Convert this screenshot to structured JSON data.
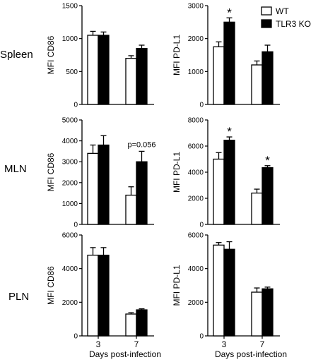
{
  "legend": {
    "entries": [
      {
        "label": "WT",
        "fill": "#ffffff"
      },
      {
        "label": "TLR3 KO",
        "fill": "#000000"
      }
    ],
    "placement": "top-right"
  },
  "rows": [
    {
      "label": "Spleen"
    },
    {
      "label": "MLN"
    },
    {
      "label": "PLN"
    }
  ],
  "x_axis_label": "Days post-infection",
  "chart_data": [
    {
      "type": "bar",
      "row": "Spleen",
      "ylabel": "MFI CD86",
      "categories": [
        "3",
        "7"
      ],
      "ylim": [
        0,
        1500
      ],
      "yticks": [
        0,
        500,
        1000,
        1500
      ],
      "show_xticks": false,
      "series": [
        {
          "name": "WT",
          "values": [
            1050,
            700
          ],
          "errors": [
            60,
            40
          ]
        },
        {
          "name": "TLR3 KO",
          "values": [
            1050,
            850
          ],
          "errors": [
            50,
            50
          ]
        }
      ],
      "annotations": []
    },
    {
      "type": "bar",
      "row": "Spleen",
      "ylabel": "MFI PD-L1",
      "categories": [
        "3",
        "7"
      ],
      "ylim": [
        0,
        3000
      ],
      "yticks": [
        0,
        1000,
        2000,
        3000
      ],
      "show_xticks": false,
      "series": [
        {
          "name": "WT",
          "values": [
            1750,
            1200
          ],
          "errors": [
            150,
            120
          ]
        },
        {
          "name": "TLR3 KO",
          "values": [
            2500,
            1600
          ],
          "errors": [
            130,
            200
          ]
        }
      ],
      "annotations": [
        {
          "text": "*",
          "category": "3",
          "series": "TLR3 KO"
        }
      ]
    },
    {
      "type": "bar",
      "row": "MLN",
      "ylabel": "MFI CD86",
      "categories": [
        "3",
        "7"
      ],
      "ylim": [
        0,
        5000
      ],
      "yticks": [
        0,
        1000,
        2000,
        3000,
        4000,
        5000
      ],
      "show_xticks": false,
      "series": [
        {
          "name": "WT",
          "values": [
            3400,
            1400
          ],
          "errors": [
            400,
            400
          ]
        },
        {
          "name": "TLR3 KO",
          "values": [
            3800,
            3000
          ],
          "errors": [
            450,
            500
          ]
        }
      ],
      "annotations": [
        {
          "text": "p=0.056",
          "category": "7",
          "series": "TLR3 KO"
        }
      ]
    },
    {
      "type": "bar",
      "row": "MLN",
      "ylabel": "MFI PD-L1",
      "categories": [
        "3",
        "7"
      ],
      "ylim": [
        0,
        8000
      ],
      "yticks": [
        0,
        2000,
        4000,
        6000,
        8000
      ],
      "show_xticks": false,
      "series": [
        {
          "name": "WT",
          "values": [
            5000,
            2400
          ],
          "errors": [
            500,
            300
          ]
        },
        {
          "name": "TLR3 KO",
          "values": [
            6450,
            4350
          ],
          "errors": [
            250,
            150
          ]
        }
      ],
      "annotations": [
        {
          "text": "*",
          "category": "3",
          "series": "TLR3 KO"
        },
        {
          "text": "*",
          "category": "7",
          "series": "TLR3 KO"
        }
      ]
    },
    {
      "type": "bar",
      "row": "PLN",
      "ylabel": "MFI CD86",
      "categories": [
        "3",
        "7"
      ],
      "ylim": [
        0,
        6000
      ],
      "yticks": [
        0,
        2000,
        4000,
        6000
      ],
      "show_xticks": true,
      "series": [
        {
          "name": "WT",
          "values": [
            4800,
            1300
          ],
          "errors": [
            450,
            80
          ]
        },
        {
          "name": "TLR3 KO",
          "values": [
            4800,
            1550
          ],
          "errors": [
            450,
            60
          ]
        }
      ],
      "annotations": []
    },
    {
      "type": "bar",
      "row": "PLN",
      "ylabel": "MFI PD-L1",
      "categories": [
        "3",
        "7"
      ],
      "ylim": [
        0,
        6000
      ],
      "yticks": [
        0,
        2000,
        4000,
        6000
      ],
      "show_xticks": true,
      "series": [
        {
          "name": "WT",
          "values": [
            5400,
            2600
          ],
          "errors": [
            150,
            250
          ]
        },
        {
          "name": "TLR3 KO",
          "values": [
            5150,
            2800
          ],
          "errors": [
            450,
            100
          ]
        }
      ],
      "annotations": []
    }
  ]
}
